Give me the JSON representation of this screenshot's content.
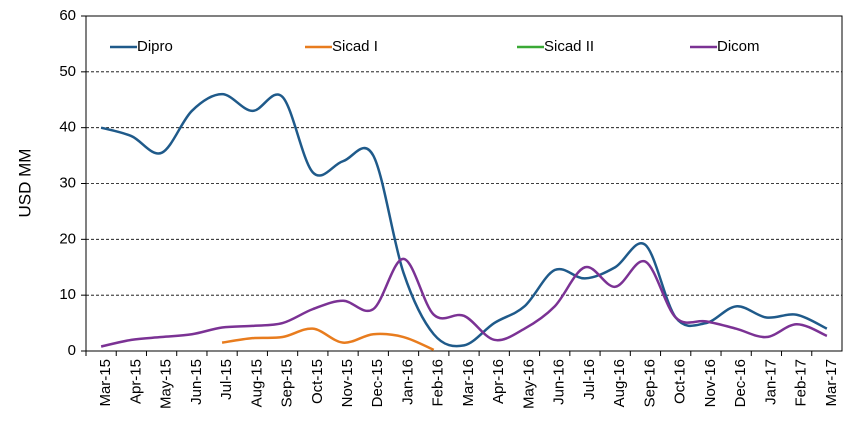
{
  "chart_data": {
    "type": "line",
    "y_label": "USD MM",
    "categories": [
      "Mar-15",
      "Apr-15",
      "May-15",
      "Jun-15",
      "Jul-15",
      "Aug-15",
      "Sep-15",
      "Oct-15",
      "Nov-15",
      "Dec-15",
      "Jan-16",
      "Feb-16",
      "Mar-16",
      "Apr-16",
      "May-16",
      "Jun-16",
      "Jul-16",
      "Aug-16",
      "Sep-16",
      "Oct-16",
      "Nov-16",
      "Dec-16",
      "Jan-17",
      "Feb-17",
      "Mar-17"
    ],
    "series": [
      {
        "name": "Dipro",
        "color": "#1f5a8a",
        "values": [
          40,
          38.5,
          35.5,
          43,
          46,
          43,
          45.5,
          32,
          34,
          35,
          14,
          3,
          1,
          5,
          8,
          14.5,
          13,
          15,
          19,
          6,
          5,
          8,
          6,
          6.5,
          4
        ]
      },
      {
        "name": "Sicad I",
        "color": "#e87c1e",
        "values": [
          null,
          null,
          null,
          null,
          1.5,
          2.3,
          2.5,
          4,
          1.5,
          3,
          2.5,
          0.2,
          null,
          null,
          null,
          null,
          null,
          null,
          null,
          null,
          null,
          null,
          null,
          null,
          null
        ]
      },
      {
        "name": "Sicad II",
        "color": "#3aa935",
        "values": [
          null,
          null,
          null,
          null,
          null,
          null,
          null,
          null,
          null,
          null,
          null,
          null,
          null,
          null,
          null,
          null,
          null,
          null,
          null,
          null,
          null,
          null,
          null,
          null,
          null
        ]
      },
      {
        "name": "Dicom",
        "color": "#7b3294",
        "values": [
          0.8,
          2,
          2.5,
          3,
          4.2,
          4.5,
          5,
          7.5,
          9,
          7.5,
          16.5,
          6.5,
          6.3,
          2,
          4,
          8,
          15,
          11.5,
          16,
          6,
          5.3,
          4,
          2.5,
          4.8,
          2.7
        ]
      }
    ],
    "ylim": [
      0,
      60
    ],
    "yticks": [
      0,
      10,
      20,
      30,
      40,
      50,
      60
    ],
    "grid": true
  }
}
